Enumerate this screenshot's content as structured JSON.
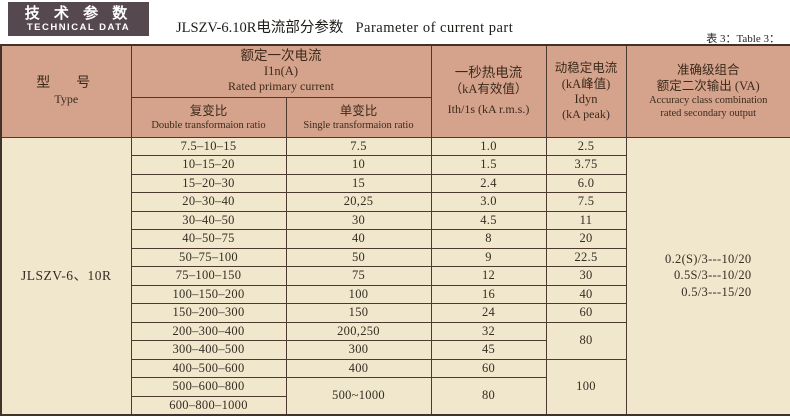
{
  "badge": {
    "title_zh": "技 术 参 数",
    "title_en": "TECHNICAL DATA"
  },
  "heading": {
    "title_zh": "JLSZV-6.10R电流部分参数",
    "title_en": "Parameter of current part"
  },
  "table_label": "表 3：Table 3：",
  "colors": {
    "badge_bg": "#55484e",
    "header_bg": "#d5a38c",
    "cell_bg": "#f0e7cd",
    "border": "#4b3a2d",
    "page_bg": "#ffffff"
  },
  "table": {
    "header": {
      "type_zh": "型　号",
      "type_en": "Type",
      "primary_zh": "额定一次电流",
      "primary_sym": "I1n(A)",
      "primary_en": "Rated primary current",
      "double_zh": "复变比",
      "double_en": "Double transformaion ratio",
      "single_zh": "单变比",
      "single_en": "Single transformaion ratio",
      "thermal_zh": "一秒热电流",
      "thermal_zh2": "（kA有效值）",
      "thermal_en": "Ith/1s (kA r.m.s.)",
      "dynamic_zh": "动稳定电流",
      "dynamic_zh2": "(kA峰值)",
      "dynamic_sym": "Idyn",
      "dynamic_en": "(kA peak)",
      "accuracy_zh": "准确级组合",
      "accuracy_zh2": "额定二次输出 (VA)",
      "accuracy_en1": "Accuracy class combination",
      "accuracy_en2": "rated secondary output"
    },
    "type_value": "JLSZV-6、10R",
    "rows": [
      {
        "double": "7.5–10–15",
        "single": "7.5",
        "ith": "1.0",
        "idyn": "2.5"
      },
      {
        "double": "10–15–20",
        "single": "10",
        "ith": "1.5",
        "idyn": "3.75"
      },
      {
        "double": "15–20–30",
        "single": "15",
        "ith": "2.4",
        "idyn": "6.0"
      },
      {
        "double": "20–30–40",
        "single": "20,25",
        "ith": "3.0",
        "idyn": "7.5"
      },
      {
        "double": "30–40–50",
        "single": "30",
        "ith": "4.5",
        "idyn": "11"
      },
      {
        "double": "40–50–75",
        "single": "40",
        "ith": "8",
        "idyn": "20"
      },
      {
        "double": "50–75–100",
        "single": "50",
        "ith": "9",
        "idyn": "22.5"
      },
      {
        "double": "75–100–150",
        "single": "75",
        "ith": "12",
        "idyn": "30"
      },
      {
        "double": "100–150–200",
        "single": "100",
        "ith": "16",
        "idyn": "40"
      },
      {
        "double": "150–200–300",
        "single": "150",
        "ith": "24",
        "idyn": "60"
      },
      {
        "double": "200–300–400",
        "single": "200,250",
        "ith": "32",
        "idyn": "80"
      },
      {
        "double": "300–400–500",
        "single": "300",
        "ith": "45"
      },
      {
        "double": "400–500–600",
        "single": "400",
        "ith": "60",
        "idyn": "100"
      },
      {
        "double": "500–600–800",
        "single": "500~1000",
        "ith": "80"
      },
      {
        "double": "600–800–1000"
      }
    ],
    "accuracy_lines": [
      "0.2(S)/3---10/20",
      "0.5S/3---10/20",
      "0.5/3---15/20"
    ]
  }
}
